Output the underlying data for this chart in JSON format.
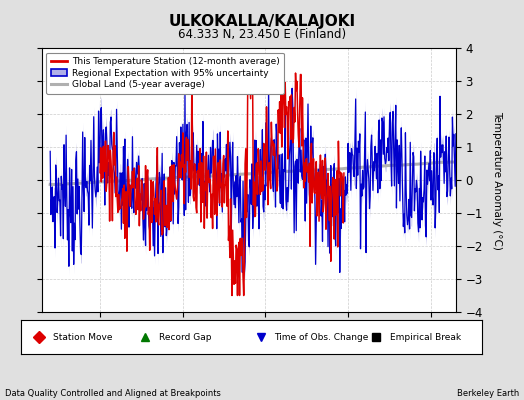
{
  "title": "ULKOKALLA/KALAJOKI",
  "subtitle": "64.333 N, 23.450 E (Finland)",
  "ylabel": "Temperature Anomaly (°C)",
  "xlabel_bottom_left": "Data Quality Controlled and Aligned at Breakpoints",
  "xlabel_bottom_right": "Berkeley Earth",
  "ylim": [
    -4,
    4
  ],
  "xlim": [
    1943,
    1993
  ],
  "yticks": [
    -4,
    -3,
    -2,
    -1,
    0,
    1,
    2,
    3,
    4
  ],
  "xticks": [
    1950,
    1960,
    1970,
    1980,
    1990
  ],
  "bg_color": "#e0e0e0",
  "plot_bg_color": "#ffffff",
  "red_line_color": "#dd0000",
  "blue_line_color": "#0000cc",
  "blue_fill_color": "#b0b0e8",
  "gray_line_color": "#b0b0b0",
  "legend_items": [
    {
      "label": "This Temperature Station (12-month average)",
      "color": "#dd0000"
    },
    {
      "label": "Regional Expectation with 95% uncertainty",
      "color": "#0000cc"
    },
    {
      "label": "Global Land (5-year average)",
      "color": "#b0b0b0"
    }
  ],
  "bottom_legend_items": [
    {
      "label": "Station Move",
      "color": "#dd0000",
      "marker": "D"
    },
    {
      "label": "Record Gap",
      "color": "#007700",
      "marker": "^"
    },
    {
      "label": "Time of Obs. Change",
      "color": "#0000cc",
      "marker": "v"
    },
    {
      "label": "Empirical Break",
      "color": "#000000",
      "marker": "s"
    }
  ]
}
